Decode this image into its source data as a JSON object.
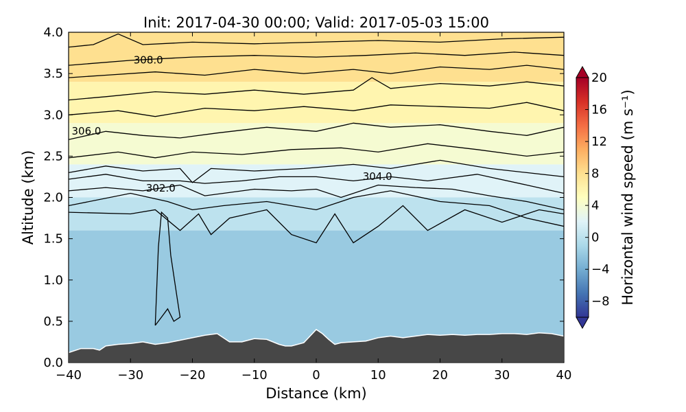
{
  "chart_data": {
    "type": "heatmap",
    "title": "Init: 2017-04-30 00:00; Valid: 2017-05-03 15:00",
    "xlabel": "Distance (km)",
    "ylabel": "Altitude (km)",
    "xlim": [
      -40,
      40
    ],
    "ylim": [
      0.0,
      4.0
    ],
    "x_ticks": [
      "−40",
      "−30",
      "−20",
      "−10",
      "0",
      "10",
      "20",
      "30",
      "40"
    ],
    "x_tick_values": [
      -40,
      -30,
      -20,
      -10,
      0,
      10,
      20,
      30,
      40
    ],
    "y_ticks": [
      "0.0",
      "0.5",
      "1.0",
      "1.5",
      "2.0",
      "2.5",
      "3.0",
      "3.5",
      "4.0"
    ],
    "y_tick_values": [
      0.0,
      0.5,
      1.0,
      1.5,
      2.0,
      2.5,
      3.0,
      3.5,
      4.0
    ],
    "colorbar": {
      "label": "Horizontal wind speed (m s⁻¹)",
      "range": [
        -10,
        20
      ],
      "tick_labels": [
        "−8",
        "−4",
        "0",
        "4",
        "8",
        "12",
        "16",
        "20"
      ],
      "tick_values": [
        -8,
        -4,
        0,
        4,
        8,
        12,
        16,
        20
      ],
      "extend": "both",
      "colormap": [
        "#313695",
        "#4575b4",
        "#74add1",
        "#abd9e9",
        "#e0f3f8",
        "#ffffbf",
        "#fee090",
        "#fdae61",
        "#f46d43",
        "#d73027",
        "#a50026"
      ]
    },
    "contour_labels": [
      {
        "text": "308.0",
        "x": -29.5,
        "y": 3.62
      },
      {
        "text": "306.0",
        "x": -39.5,
        "y": 2.76
      },
      {
        "text": "304.0",
        "x": 7.5,
        "y": 2.21
      },
      {
        "text": "302.0",
        "x": -27.5,
        "y": 2.07
      }
    ],
    "terrain": {
      "color": "#474747",
      "x": [
        -40,
        -38,
        -36,
        -35,
        -34,
        -32,
        -30,
        -28,
        -26,
        -24,
        -22,
        -20,
        -18,
        -16,
        -15,
        -14,
        -12,
        -11,
        -10,
        -8,
        -6,
        -5,
        -4,
        -2,
        0,
        1,
        2,
        3,
        4,
        6,
        8,
        10,
        12,
        14,
        16,
        18,
        20,
        22,
        24,
        26,
        28,
        30,
        32,
        34,
        36,
        38,
        40
      ],
      "y": [
        0.12,
        0.17,
        0.17,
        0.15,
        0.2,
        0.22,
        0.23,
        0.25,
        0.22,
        0.24,
        0.27,
        0.3,
        0.33,
        0.35,
        0.3,
        0.25,
        0.25,
        0.27,
        0.29,
        0.28,
        0.22,
        0.2,
        0.2,
        0.24,
        0.4,
        0.35,
        0.28,
        0.22,
        0.24,
        0.25,
        0.26,
        0.3,
        0.32,
        0.3,
        0.32,
        0.34,
        0.33,
        0.34,
        0.33,
        0.34,
        0.34,
        0.35,
        0.35,
        0.34,
        0.36,
        0.35,
        0.32
      ]
    },
    "wind_speed_bands": [
      {
        "y_from": 0.0,
        "y_to": 1.6,
        "value": -2
      },
      {
        "y_from": 1.6,
        "y_to": 2.0,
        "value": 0
      },
      {
        "y_from": 2.0,
        "y_to": 2.4,
        "value": 2
      },
      {
        "y_from": 2.4,
        "y_to": 2.9,
        "value": 4
      },
      {
        "y_from": 2.9,
        "y_to": 3.4,
        "value": 6
      },
      {
        "y_from": 3.4,
        "y_to": 4.0,
        "value": 8
      }
    ],
    "isentropes": [
      {
        "points": [
          [
            -40,
            1.82
          ],
          [
            -30,
            1.8
          ],
          [
            -26,
            1.85
          ],
          [
            -22,
            1.6
          ],
          [
            -19,
            1.8
          ],
          [
            -17,
            1.55
          ],
          [
            -14,
            1.75
          ],
          [
            -8,
            1.85
          ],
          [
            -4,
            1.55
          ],
          [
            0,
            1.45
          ],
          [
            3,
            1.8
          ],
          [
            6,
            1.45
          ],
          [
            10,
            1.65
          ],
          [
            14,
            1.9
          ],
          [
            18,
            1.6
          ],
          [
            24,
            1.85
          ],
          [
            30,
            1.7
          ],
          [
            36,
            1.85
          ],
          [
            40,
            1.8
          ]
        ]
      },
      {
        "points": [
          [
            -40,
            1.9
          ],
          [
            -30,
            2.05
          ],
          [
            -24,
            1.95
          ],
          [
            -20,
            1.85
          ],
          [
            -15,
            1.9
          ],
          [
            -8,
            1.95
          ],
          [
            0,
            1.85
          ],
          [
            6,
            2.0
          ],
          [
            12,
            2.08
          ],
          [
            20,
            1.95
          ],
          [
            28,
            1.9
          ],
          [
            34,
            1.75
          ],
          [
            40,
            1.65
          ]
        ]
      },
      {
        "points": [
          [
            -40,
            2.08
          ],
          [
            -34,
            2.12
          ],
          [
            -28,
            2.08
          ],
          [
            -22,
            2.15
          ],
          [
            -18,
            2.02
          ],
          [
            -10,
            2.1
          ],
          [
            -4,
            2.08
          ],
          [
            0,
            2.1
          ],
          [
            4,
            2.0
          ],
          [
            10,
            2.15
          ],
          [
            16,
            2.12
          ],
          [
            22,
            2.1
          ],
          [
            28,
            2.02
          ],
          [
            34,
            1.95
          ],
          [
            40,
            1.85
          ]
        ]
      },
      {
        "points": [
          [
            -40,
            2.22
          ],
          [
            -34,
            2.28
          ],
          [
            -28,
            2.2
          ],
          [
            -22,
            2.2
          ],
          [
            -18,
            2.17
          ],
          [
            -12,
            2.2
          ],
          [
            -6,
            2.25
          ],
          [
            0,
            2.25
          ],
          [
            6,
            2.2
          ],
          [
            12,
            2.25
          ],
          [
            18,
            2.2
          ],
          [
            26,
            2.28
          ],
          [
            34,
            2.15
          ],
          [
            40,
            2.05
          ]
        ]
      },
      {
        "points": [
          [
            -40,
            2.3
          ],
          [
            -34,
            2.38
          ],
          [
            -28,
            2.32
          ],
          [
            -22,
            2.35
          ],
          [
            -20,
            2.18
          ],
          [
            -17,
            2.35
          ],
          [
            -10,
            2.32
          ],
          [
            -2,
            2.35
          ],
          [
            6,
            2.4
          ],
          [
            12,
            2.35
          ],
          [
            20,
            2.45
          ],
          [
            28,
            2.35
          ],
          [
            34,
            2.3
          ],
          [
            40,
            2.25
          ]
        ]
      },
      {
        "points": [
          [
            -40,
            2.48
          ],
          [
            -32,
            2.55
          ],
          [
            -26,
            2.48
          ],
          [
            -20,
            2.55
          ],
          [
            -12,
            2.52
          ],
          [
            -4,
            2.58
          ],
          [
            4,
            2.6
          ],
          [
            10,
            2.55
          ],
          [
            18,
            2.65
          ],
          [
            26,
            2.58
          ],
          [
            34,
            2.5
          ],
          [
            40,
            2.55
          ]
        ]
      },
      {
        "points": [
          [
            -40,
            2.7
          ],
          [
            -34,
            2.8
          ],
          [
            -28,
            2.75
          ],
          [
            -22,
            2.72
          ],
          [
            -16,
            2.78
          ],
          [
            -8,
            2.85
          ],
          [
            0,
            2.8
          ],
          [
            6,
            2.9
          ],
          [
            12,
            2.85
          ],
          [
            20,
            2.88
          ],
          [
            28,
            2.8
          ],
          [
            34,
            2.75
          ],
          [
            40,
            2.85
          ]
        ]
      },
      {
        "points": [
          [
            -40,
            3.0
          ],
          [
            -32,
            3.05
          ],
          [
            -26,
            2.98
          ],
          [
            -18,
            3.08
          ],
          [
            -10,
            3.05
          ],
          [
            -2,
            3.1
          ],
          [
            6,
            3.05
          ],
          [
            12,
            3.12
          ],
          [
            20,
            3.1
          ],
          [
            28,
            3.08
          ],
          [
            34,
            3.15
          ],
          [
            40,
            3.05
          ]
        ]
      },
      {
        "points": [
          [
            -40,
            3.18
          ],
          [
            -34,
            3.22
          ],
          [
            -26,
            3.28
          ],
          [
            -18,
            3.25
          ],
          [
            -10,
            3.3
          ],
          [
            -2,
            3.25
          ],
          [
            6,
            3.3
          ],
          [
            9,
            3.45
          ],
          [
            12,
            3.32
          ],
          [
            20,
            3.38
          ],
          [
            28,
            3.35
          ],
          [
            34,
            3.4
          ],
          [
            40,
            3.35
          ]
        ]
      },
      {
        "points": [
          [
            -40,
            3.45
          ],
          [
            -34,
            3.48
          ],
          [
            -26,
            3.52
          ],
          [
            -18,
            3.48
          ],
          [
            -10,
            3.55
          ],
          [
            -2,
            3.5
          ],
          [
            6,
            3.55
          ],
          [
            12,
            3.5
          ],
          [
            20,
            3.58
          ],
          [
            28,
            3.55
          ],
          [
            34,
            3.6
          ],
          [
            40,
            3.55
          ]
        ]
      },
      {
        "points": [
          [
            -40,
            3.6
          ],
          [
            -30,
            3.66
          ],
          [
            -20,
            3.7
          ],
          [
            -10,
            3.72
          ],
          [
            0,
            3.7
          ],
          [
            8,
            3.72
          ],
          [
            16,
            3.75
          ],
          [
            24,
            3.72
          ],
          [
            32,
            3.76
          ],
          [
            40,
            3.72
          ]
        ]
      },
      {
        "points": [
          [
            -40,
            3.82
          ],
          [
            -36,
            3.85
          ],
          [
            -32,
            3.98
          ],
          [
            -28,
            3.85
          ],
          [
            -20,
            3.88
          ],
          [
            -10,
            3.86
          ],
          [
            0,
            3.88
          ],
          [
            10,
            3.9
          ],
          [
            20,
            3.88
          ],
          [
            30,
            3.92
          ],
          [
            40,
            3.94
          ]
        ]
      },
      {
        "points": [
          [
            -26,
            0.45
          ],
          [
            -25.5,
            1.4
          ],
          [
            -25,
            1.82
          ],
          [
            -24,
            1.75
          ],
          [
            -23.5,
            1.3
          ],
          [
            -22.5,
            0.8
          ],
          [
            -22,
            0.55
          ],
          [
            -23,
            0.5
          ],
          [
            -24,
            0.65
          ],
          [
            -25,
            0.55
          ],
          [
            -26,
            0.45
          ]
        ]
      }
    ]
  }
}
